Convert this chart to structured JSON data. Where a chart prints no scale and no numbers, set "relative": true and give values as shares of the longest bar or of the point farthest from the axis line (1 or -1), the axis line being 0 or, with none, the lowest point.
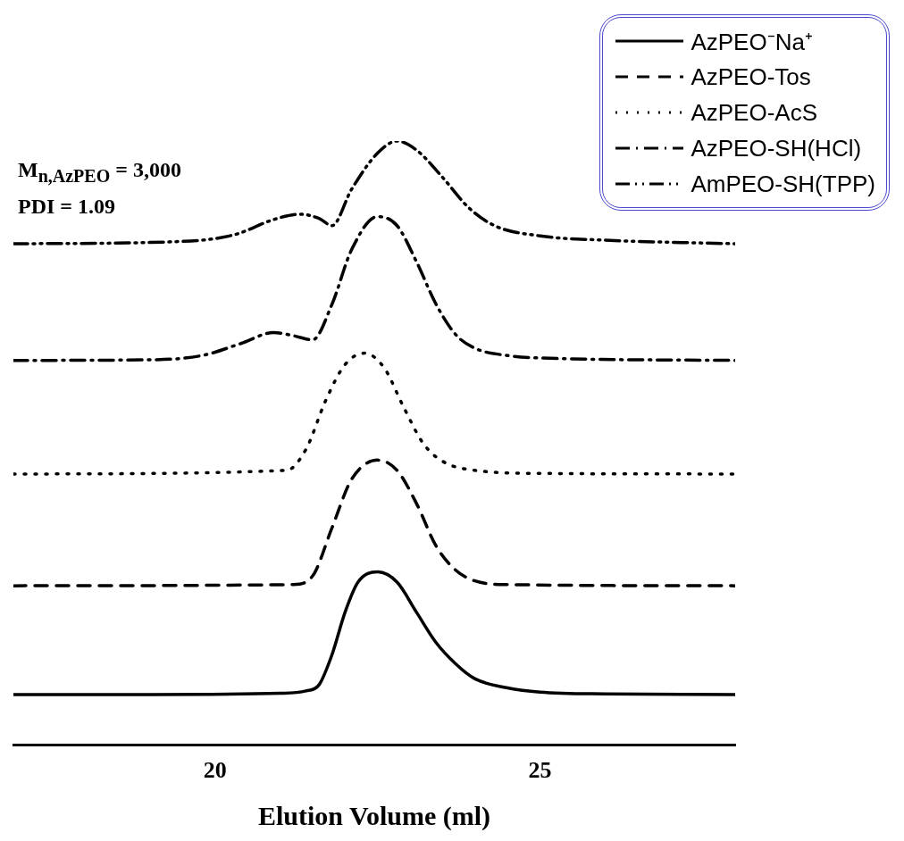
{
  "chart_data": {
    "type": "line",
    "relative": true,
    "xlabel": "Elution Volume (ml)",
    "xlim": [
      16.9,
      28
    ],
    "xticks": [
      20,
      25
    ],
    "grid": false,
    "legend": "top right",
    "marker": "none",
    "annotations": [
      "M$_{n,AzPEO}$ = 3,000",
      "PDI = 1.09"
    ],
    "series": [
      {
        "name": "AzPEO⁻Na⁺",
        "color": "#000000",
        "line_style": "solid",
        "x": [
          16.9,
          19,
          21,
          21.4,
          21.6,
          21.8,
          22.0,
          22.2,
          22.5,
          22.8,
          23.1,
          23.4,
          23.7,
          24.0,
          24.5,
          25,
          26,
          28
        ],
        "values": [
          0.084,
          0.084,
          0.086,
          0.09,
          0.1,
          0.15,
          0.22,
          0.27,
          0.287,
          0.27,
          0.22,
          0.17,
          0.135,
          0.11,
          0.095,
          0.088,
          0.085,
          0.084
        ]
      },
      {
        "name": "AzPEO-Tos",
        "color": "#000000",
        "line_style": "dashed",
        "x": [
          16.9,
          21.2,
          21.5,
          21.8,
          22.1,
          22.5,
          22.8,
          23.1,
          23.4,
          23.7,
          24,
          24.5,
          28
        ],
        "values": [
          0.264,
          0.266,
          0.28,
          0.36,
          0.44,
          0.472,
          0.455,
          0.4,
          0.33,
          0.29,
          0.272,
          0.266,
          0.264
        ]
      },
      {
        "name": "AzPEO-AcS",
        "color": "#000000",
        "line_style": "dotted",
        "x": [
          16.9,
          21.1,
          21.4,
          21.7,
          22.0,
          22.3,
          22.6,
          22.9,
          23.2,
          23.5,
          24,
          25,
          28
        ],
        "values": [
          0.449,
          0.455,
          0.49,
          0.57,
          0.63,
          0.649,
          0.625,
          0.56,
          0.5,
          0.47,
          0.455,
          0.45,
          0.449
        ]
      },
      {
        "name": "AzPEO-SH(HCl)",
        "color": "#000000",
        "line_style": "dashdot",
        "x": [
          16.9,
          19,
          19.8,
          20.4,
          20.9,
          21.2,
          21.5,
          21.8,
          22.1,
          22.5,
          22.8,
          23.1,
          23.4,
          23.7,
          24,
          24.5,
          25,
          28
        ],
        "values": [
          0.637,
          0.638,
          0.645,
          0.665,
          0.683,
          0.678,
          0.671,
          0.73,
          0.82,
          0.875,
          0.86,
          0.8,
          0.73,
          0.68,
          0.657,
          0.645,
          0.641,
          0.637
        ]
      },
      {
        "name": "AmPEO-SH(TPP)",
        "color": "#000000",
        "line_style": "dashdotdot",
        "x": [
          16.9,
          19.5,
          20.3,
          20.9,
          21.3,
          21.6,
          21.8,
          22.1,
          22.5,
          22.8,
          23.1,
          23.5,
          23.9,
          24.3,
          25,
          26,
          28
        ],
        "values": [
          0.83,
          0.834,
          0.845,
          0.87,
          0.879,
          0.872,
          0.86,
          0.92,
          0.98,
          1.0,
          0.985,
          0.94,
          0.89,
          0.86,
          0.843,
          0.836,
          0.83
        ]
      }
    ]
  }
}
